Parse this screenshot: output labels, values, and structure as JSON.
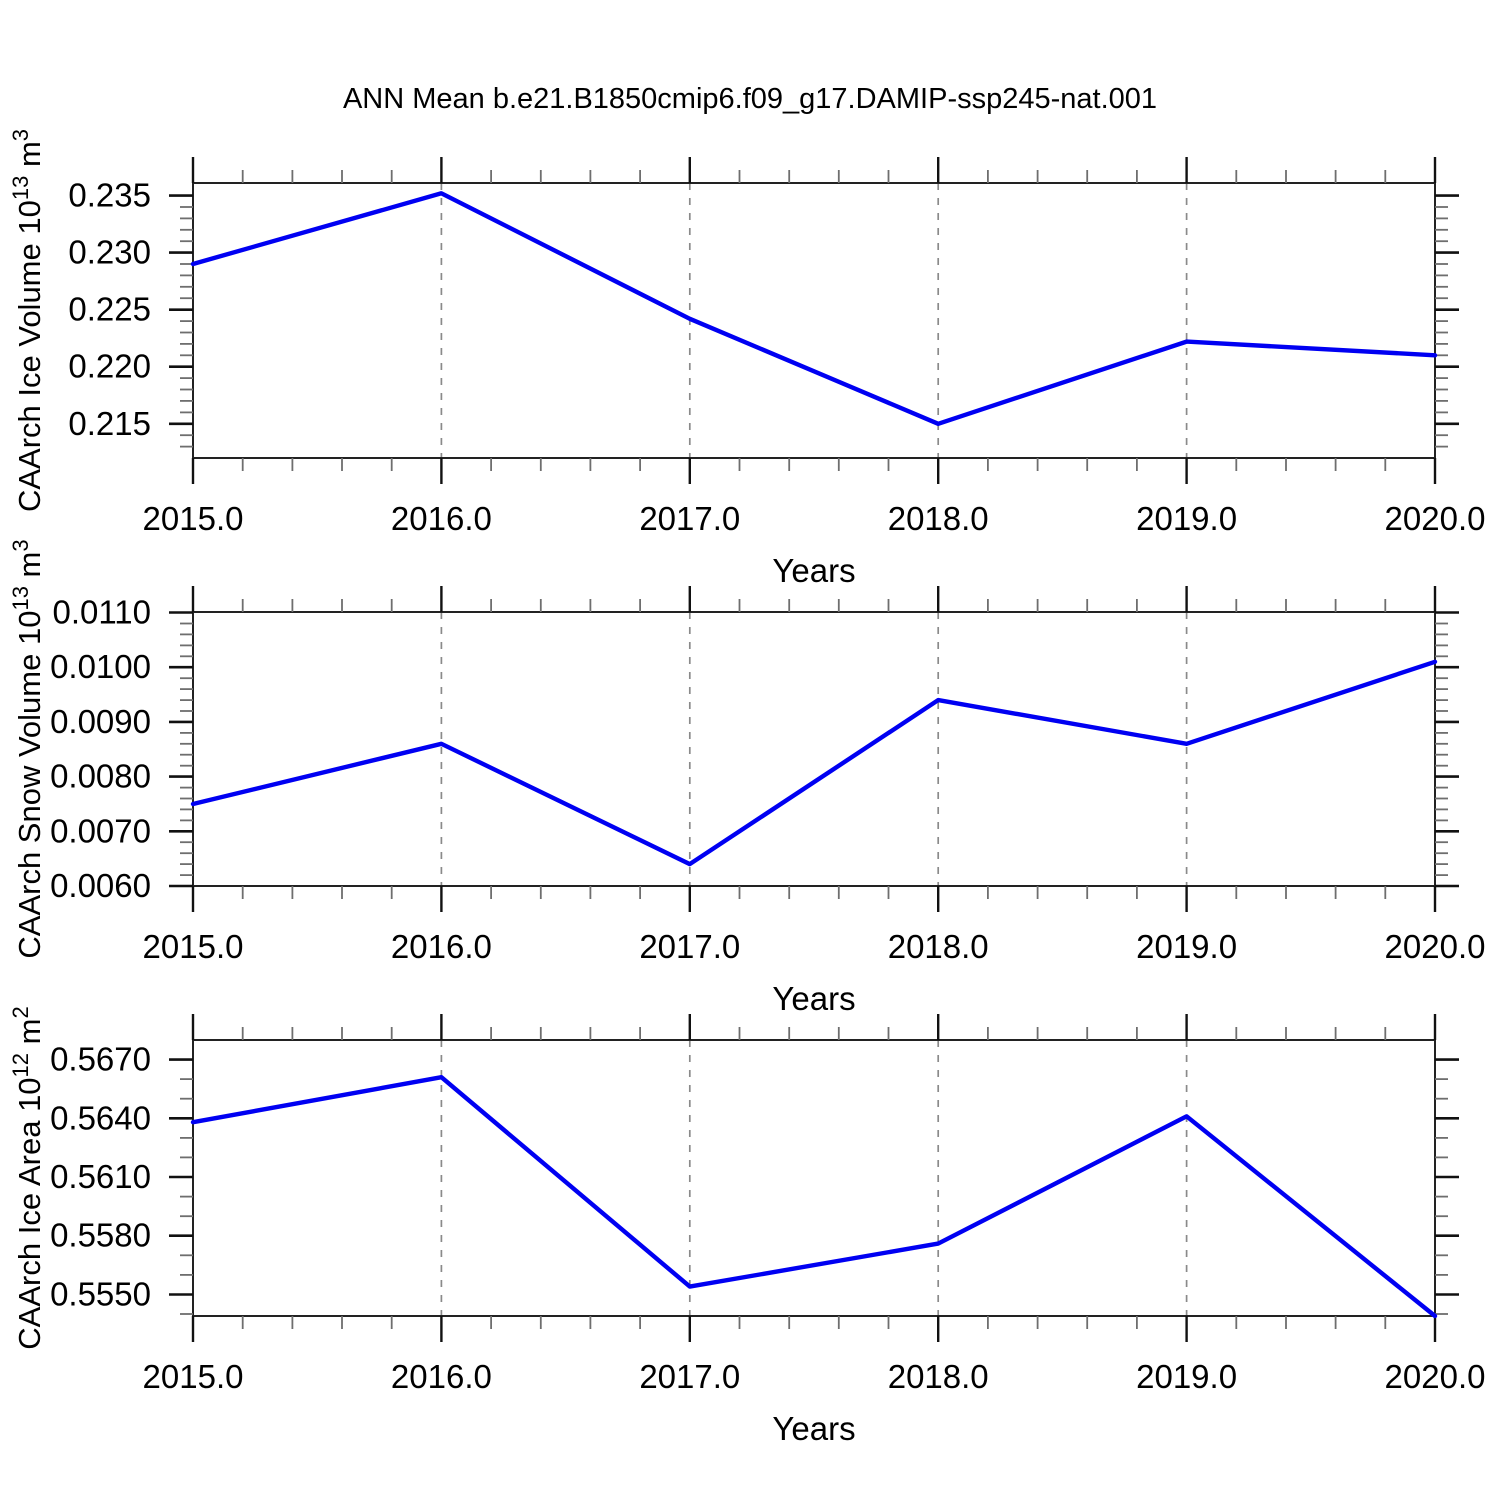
{
  "figure": {
    "title": "ANN Mean b.e21.B1850cmip6.f09_g17.DAMIP-ssp245-nat.001"
  },
  "chart_data": [
    {
      "type": "line",
      "x": [
        2015,
        2016,
        2017,
        2018,
        2019,
        2020
      ],
      "values": [
        0.229,
        0.2352,
        0.2242,
        0.215,
        0.2222,
        0.221
      ],
      "xlabel": "Years",
      "xtick_labels": [
        "2015.0",
        "2016.0",
        "2017.0",
        "2018.0",
        "2019.0",
        "2020.0"
      ],
      "ylabel": "CAArch Ice Volume 10^13 m^3",
      "ylabel_parts": [
        {
          "t": "CAArch Ice Volume 10",
          "sup": false
        },
        {
          "t": "13",
          "sup": true
        },
        {
          "t": " m",
          "sup": false
        },
        {
          "t": "3",
          "sup": true
        }
      ],
      "yticks": [
        0.215,
        0.22,
        0.225,
        0.23,
        0.235
      ],
      "ytick_labels": [
        "0.215",
        "0.220",
        "0.225",
        "0.230",
        "0.235"
      ],
      "ylim": [
        0.212,
        0.2361
      ],
      "y_minor_step": 0.001,
      "x_minor_step": 0.2,
      "xlim": [
        2015,
        2020
      ],
      "grid_x": [
        2016,
        2017,
        2018,
        2019
      ],
      "grid_style": "dashed-vertical",
      "legend": null,
      "line_color": "#0000f2"
    },
    {
      "type": "line",
      "x": [
        2015,
        2016,
        2017,
        2018,
        2019,
        2020
      ],
      "values": [
        0.0075,
        0.0086,
        0.0064,
        0.0094,
        0.0086,
        0.0101
      ],
      "xlabel": "Years",
      "xtick_labels": [
        "2015.0",
        "2016.0",
        "2017.0",
        "2018.0",
        "2019.0",
        "2020.0"
      ],
      "ylabel": "CAArch Snow Volume 10^13 m^3",
      "ylabel_parts": [
        {
          "t": "CAArch Snow Volume 10",
          "sup": false
        },
        {
          "t": "13",
          "sup": true
        },
        {
          "t": " m",
          "sup": false
        },
        {
          "t": "3",
          "sup": true
        }
      ],
      "yticks": [
        0.006,
        0.007,
        0.008,
        0.009,
        0.01,
        0.011
      ],
      "ytick_labels": [
        "0.0060",
        "0.0070",
        "0.0080",
        "0.0090",
        "0.0100",
        "0.0110"
      ],
      "ylim": [
        0.006,
        0.01101
      ],
      "y_minor_step": 0.0002,
      "x_minor_step": 0.2,
      "xlim": [
        2015,
        2020
      ],
      "grid_x": [
        2016,
        2017,
        2018,
        2019
      ],
      "grid_style": "dashed-vertical",
      "legend": null,
      "line_color": "#0000f2"
    },
    {
      "type": "line",
      "x": [
        2015,
        2016,
        2017,
        2018,
        2019,
        2020
      ],
      "values": [
        0.5638,
        0.5661,
        0.5554,
        0.5576,
        0.5641,
        0.5539
      ],
      "xlabel": "Years",
      "xtick_labels": [
        "2015.0",
        "2016.0",
        "2017.0",
        "2018.0",
        "2019.0",
        "2020.0"
      ],
      "ylabel": "CAArch Ice Area 10^12 m^2",
      "ylabel_parts": [
        {
          "t": "CAArch Ice Area 10",
          "sup": false
        },
        {
          "t": "12",
          "sup": true
        },
        {
          "t": " m",
          "sup": false
        },
        {
          "t": "2",
          "sup": true
        }
      ],
      "yticks": [
        0.555,
        0.558,
        0.561,
        0.564,
        0.567
      ],
      "ytick_labels": [
        "0.5550",
        "0.5580",
        "0.5610",
        "0.5640",
        "0.5670"
      ],
      "ylim": [
        0.5539,
        0.568
      ],
      "y_minor_step": 0.001,
      "x_minor_step": 0.2,
      "xlim": [
        2015,
        2020
      ],
      "grid_x": [
        2016,
        2017,
        2018,
        2019
      ],
      "grid_style": "dashed-vertical",
      "legend": null,
      "line_color": "#0000f2"
    }
  ],
  "colors": {
    "line": "#0000f2",
    "grid": "#8a8a8a",
    "frame": "#222222",
    "major_tick": "#111111",
    "minor_tick": "#6e6e6e"
  }
}
